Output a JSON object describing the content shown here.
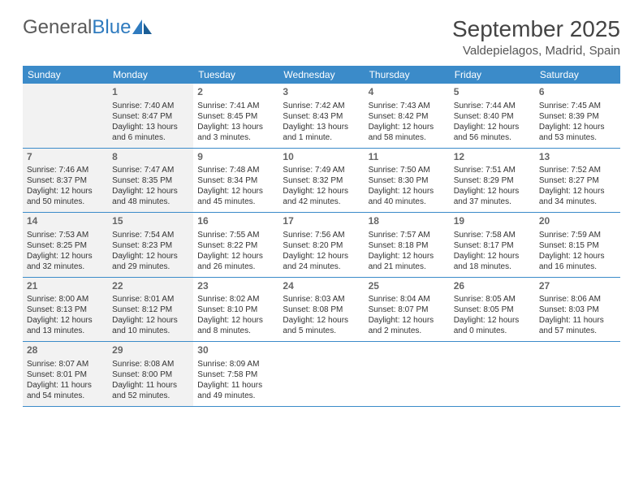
{
  "logo": {
    "text1": "General",
    "text2": "Blue"
  },
  "title": "September 2025",
  "location": "Valdepielagos, Madrid, Spain",
  "colors": {
    "header_bg": "#3b8bc9",
    "header_text": "#ffffff",
    "row_border": "#3b8bc9",
    "shaded_bg": "#f2f2f2",
    "text": "#333333",
    "logo_gray": "#5a5a5a",
    "logo_blue": "#2f7bbf"
  },
  "weekdays": [
    "Sunday",
    "Monday",
    "Tuesday",
    "Wednesday",
    "Thursday",
    "Friday",
    "Saturday"
  ],
  "weeks": [
    [
      {
        "num": "",
        "shaded": true
      },
      {
        "num": "1",
        "shaded": true,
        "sunrise": "Sunrise: 7:40 AM",
        "sunset": "Sunset: 8:47 PM",
        "daylight": "Daylight: 13 hours and 6 minutes."
      },
      {
        "num": "2",
        "shaded": false,
        "sunrise": "Sunrise: 7:41 AM",
        "sunset": "Sunset: 8:45 PM",
        "daylight": "Daylight: 13 hours and 3 minutes."
      },
      {
        "num": "3",
        "shaded": false,
        "sunrise": "Sunrise: 7:42 AM",
        "sunset": "Sunset: 8:43 PM",
        "daylight": "Daylight: 13 hours and 1 minute."
      },
      {
        "num": "4",
        "shaded": false,
        "sunrise": "Sunrise: 7:43 AM",
        "sunset": "Sunset: 8:42 PM",
        "daylight": "Daylight: 12 hours and 58 minutes."
      },
      {
        "num": "5",
        "shaded": false,
        "sunrise": "Sunrise: 7:44 AM",
        "sunset": "Sunset: 8:40 PM",
        "daylight": "Daylight: 12 hours and 56 minutes."
      },
      {
        "num": "6",
        "shaded": false,
        "sunrise": "Sunrise: 7:45 AM",
        "sunset": "Sunset: 8:39 PM",
        "daylight": "Daylight: 12 hours and 53 minutes."
      }
    ],
    [
      {
        "num": "7",
        "shaded": true,
        "sunrise": "Sunrise: 7:46 AM",
        "sunset": "Sunset: 8:37 PM",
        "daylight": "Daylight: 12 hours and 50 minutes."
      },
      {
        "num": "8",
        "shaded": true,
        "sunrise": "Sunrise: 7:47 AM",
        "sunset": "Sunset: 8:35 PM",
        "daylight": "Daylight: 12 hours and 48 minutes."
      },
      {
        "num": "9",
        "shaded": false,
        "sunrise": "Sunrise: 7:48 AM",
        "sunset": "Sunset: 8:34 PM",
        "daylight": "Daylight: 12 hours and 45 minutes."
      },
      {
        "num": "10",
        "shaded": false,
        "sunrise": "Sunrise: 7:49 AM",
        "sunset": "Sunset: 8:32 PM",
        "daylight": "Daylight: 12 hours and 42 minutes."
      },
      {
        "num": "11",
        "shaded": false,
        "sunrise": "Sunrise: 7:50 AM",
        "sunset": "Sunset: 8:30 PM",
        "daylight": "Daylight: 12 hours and 40 minutes."
      },
      {
        "num": "12",
        "shaded": false,
        "sunrise": "Sunrise: 7:51 AM",
        "sunset": "Sunset: 8:29 PM",
        "daylight": "Daylight: 12 hours and 37 minutes."
      },
      {
        "num": "13",
        "shaded": false,
        "sunrise": "Sunrise: 7:52 AM",
        "sunset": "Sunset: 8:27 PM",
        "daylight": "Daylight: 12 hours and 34 minutes."
      }
    ],
    [
      {
        "num": "14",
        "shaded": true,
        "sunrise": "Sunrise: 7:53 AM",
        "sunset": "Sunset: 8:25 PM",
        "daylight": "Daylight: 12 hours and 32 minutes."
      },
      {
        "num": "15",
        "shaded": true,
        "sunrise": "Sunrise: 7:54 AM",
        "sunset": "Sunset: 8:23 PM",
        "daylight": "Daylight: 12 hours and 29 minutes."
      },
      {
        "num": "16",
        "shaded": false,
        "sunrise": "Sunrise: 7:55 AM",
        "sunset": "Sunset: 8:22 PM",
        "daylight": "Daylight: 12 hours and 26 minutes."
      },
      {
        "num": "17",
        "shaded": false,
        "sunrise": "Sunrise: 7:56 AM",
        "sunset": "Sunset: 8:20 PM",
        "daylight": "Daylight: 12 hours and 24 minutes."
      },
      {
        "num": "18",
        "shaded": false,
        "sunrise": "Sunrise: 7:57 AM",
        "sunset": "Sunset: 8:18 PM",
        "daylight": "Daylight: 12 hours and 21 minutes."
      },
      {
        "num": "19",
        "shaded": false,
        "sunrise": "Sunrise: 7:58 AM",
        "sunset": "Sunset: 8:17 PM",
        "daylight": "Daylight: 12 hours and 18 minutes."
      },
      {
        "num": "20",
        "shaded": false,
        "sunrise": "Sunrise: 7:59 AM",
        "sunset": "Sunset: 8:15 PM",
        "daylight": "Daylight: 12 hours and 16 minutes."
      }
    ],
    [
      {
        "num": "21",
        "shaded": true,
        "sunrise": "Sunrise: 8:00 AM",
        "sunset": "Sunset: 8:13 PM",
        "daylight": "Daylight: 12 hours and 13 minutes."
      },
      {
        "num": "22",
        "shaded": true,
        "sunrise": "Sunrise: 8:01 AM",
        "sunset": "Sunset: 8:12 PM",
        "daylight": "Daylight: 12 hours and 10 minutes."
      },
      {
        "num": "23",
        "shaded": false,
        "sunrise": "Sunrise: 8:02 AM",
        "sunset": "Sunset: 8:10 PM",
        "daylight": "Daylight: 12 hours and 8 minutes."
      },
      {
        "num": "24",
        "shaded": false,
        "sunrise": "Sunrise: 8:03 AM",
        "sunset": "Sunset: 8:08 PM",
        "daylight": "Daylight: 12 hours and 5 minutes."
      },
      {
        "num": "25",
        "shaded": false,
        "sunrise": "Sunrise: 8:04 AM",
        "sunset": "Sunset: 8:07 PM",
        "daylight": "Daylight: 12 hours and 2 minutes."
      },
      {
        "num": "26",
        "shaded": false,
        "sunrise": "Sunrise: 8:05 AM",
        "sunset": "Sunset: 8:05 PM",
        "daylight": "Daylight: 12 hours and 0 minutes."
      },
      {
        "num": "27",
        "shaded": false,
        "sunrise": "Sunrise: 8:06 AM",
        "sunset": "Sunset: 8:03 PM",
        "daylight": "Daylight: 11 hours and 57 minutes."
      }
    ],
    [
      {
        "num": "28",
        "shaded": true,
        "sunrise": "Sunrise: 8:07 AM",
        "sunset": "Sunset: 8:01 PM",
        "daylight": "Daylight: 11 hours and 54 minutes."
      },
      {
        "num": "29",
        "shaded": true,
        "sunrise": "Sunrise: 8:08 AM",
        "sunset": "Sunset: 8:00 PM",
        "daylight": "Daylight: 11 hours and 52 minutes."
      },
      {
        "num": "30",
        "shaded": false,
        "sunrise": "Sunrise: 8:09 AM",
        "sunset": "Sunset: 7:58 PM",
        "daylight": "Daylight: 11 hours and 49 minutes."
      },
      {
        "num": "",
        "shaded": false
      },
      {
        "num": "",
        "shaded": false
      },
      {
        "num": "",
        "shaded": false
      },
      {
        "num": "",
        "shaded": false
      }
    ]
  ]
}
